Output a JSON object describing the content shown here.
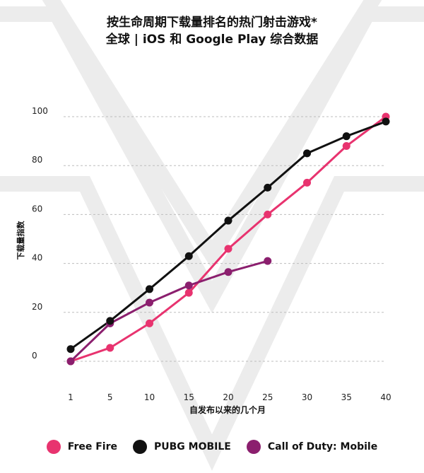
{
  "title": "按生命周期下载量排名的热门射击游戏*",
  "subtitle": "全球 | iOS 和 Google Play 综合数据",
  "chart_data": {
    "type": "line",
    "xlabel": "自发布以来的几个月",
    "ylabel": "下载量指数",
    "categories": [
      "1",
      "5",
      "10",
      "15",
      "20",
      "25",
      "30",
      "35",
      "40"
    ],
    "ylim": [
      0,
      100
    ],
    "yticks": [
      "0",
      "20",
      "40",
      "60",
      "80",
      "100"
    ],
    "grid": "horizontal dashed",
    "legend_position": "bottom",
    "series": [
      {
        "name": "Free Fire",
        "color": "#e8336f",
        "values": [
          0,
          5.5,
          15.5,
          28,
          46,
          60,
          73,
          88,
          100
        ]
      },
      {
        "name": "PUBG MOBILE",
        "color": "#111111",
        "values": [
          5,
          16.5,
          29.5,
          43,
          57.5,
          71,
          85,
          92,
          98
        ]
      },
      {
        "name": "Call of Duty: Mobile",
        "color": "#8b1f6e",
        "values": [
          0,
          15.5,
          24,
          31,
          36.5,
          41,
          null,
          null,
          null
        ]
      }
    ]
  }
}
